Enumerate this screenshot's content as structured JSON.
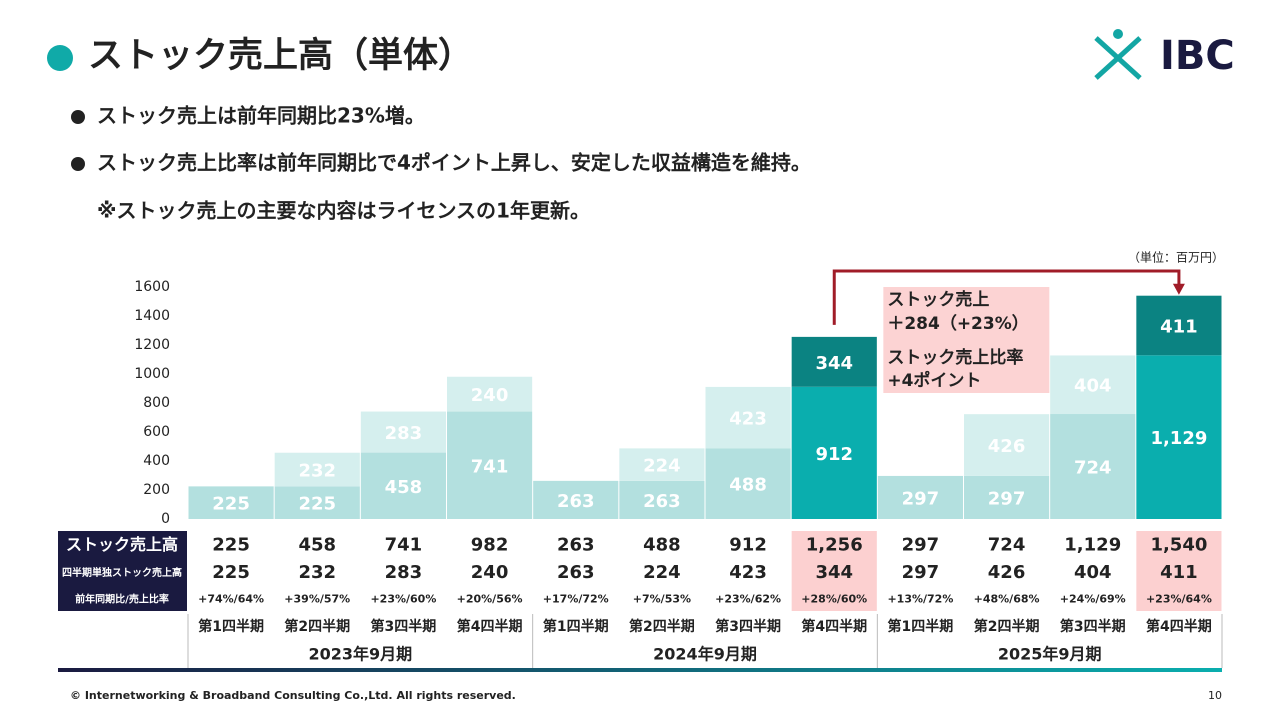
{
  "header": {
    "title": "ストック売上高（単体）",
    "logo": "IBC"
  },
  "bullets": [
    "ストック売上は前年同期比23%増。",
    "ストック売上比率は前年同期比で4ポイント上昇し、安定した収益構造を維持。",
    "※ストック売上の主要な内容はライセンスの1年更新。"
  ],
  "chart_data": {
    "type": "bar",
    "stacked": true,
    "unit_note": "（単位：百万円）",
    "categories": [
      "第1四半期",
      "第2四半期",
      "第3四半期",
      "第4四半期",
      "第1四半期",
      "第2四半期",
      "第3四半期",
      "第4四半期",
      "第1四半期",
      "第2四半期",
      "第3四半期",
      "第4四半期"
    ],
    "groups": [
      "2023年9月期",
      "2024年9月期",
      "2025年9月期"
    ],
    "series": [
      {
        "values": [
          225,
          225,
          458,
          741,
          263,
          263,
          488,
          912,
          297,
          297,
          724,
          1129
        ],
        "value_labels": [
          "225",
          "225",
          "458",
          "741",
          "263",
          "263",
          "488",
          "912",
          "297",
          "297",
          "724",
          "1,129"
        ],
        "colors": [
          "#b3e0df",
          "#b3e0df",
          "#b3e0df",
          "#b3e0df",
          "#b3e0df",
          "#b3e0df",
          "#b3e0df",
          "#0aaeae",
          "#b3e0df",
          "#b3e0df",
          "#b3e0df",
          "#0aaeae"
        ]
      },
      {
        "values": [
          null,
          232,
          283,
          240,
          null,
          224,
          423,
          344,
          null,
          426,
          404,
          411
        ],
        "colors": [
          "#d5efee",
          "#d5efee",
          "#d5efee",
          "#d5efee",
          "#d5efee",
          "#d5efee",
          "#d5efee",
          "#0b8382",
          "#d5efee",
          "#d5efee",
          "#d5efee",
          "#0b8382"
        ]
      }
    ],
    "ylim": [
      0,
      1600
    ],
    "yticks": [
      0,
      200,
      400,
      600,
      800,
      1000,
      1200,
      1400,
      1600
    ],
    "grid": false,
    "annotation": {
      "lines": [
        "ストック売上",
        "＋284（+23%）",
        "ストック売上比率",
        "+4ポイント"
      ],
      "color": "#fcd3d3",
      "arrow_color": "#a01c28"
    }
  },
  "table": {
    "highlight_color": "#fcd0d0",
    "rows": [
      {
        "label": "ストック売上高",
        "cells": [
          "225",
          "458",
          "741",
          "982",
          "263",
          "488",
          "912",
          "1,256",
          "297",
          "724",
          "1,129",
          "1,540"
        ]
      },
      {
        "label": "四半期単独ストック売上高",
        "cells": [
          "225",
          "232",
          "283",
          "240",
          "263",
          "224",
          "423",
          "344",
          "297",
          "426",
          "404",
          "411"
        ]
      },
      {
        "label": "前年同期比/売上比率",
        "cells": [
          "+74%/64%",
          "+39%/57%",
          "+23%/60%",
          "+20%/56%",
          "+17%/72%",
          "+7%/53%",
          "+23%/62%",
          "+28%/60%",
          "+13%/72%",
          "+48%/68%",
          "+24%/69%",
          "+23%/64%"
        ]
      }
    ]
  },
  "footer": {
    "copyright": "© Internetworking & Broadband Consulting Co.,Ltd. All rights reserved.",
    "page": "10"
  }
}
